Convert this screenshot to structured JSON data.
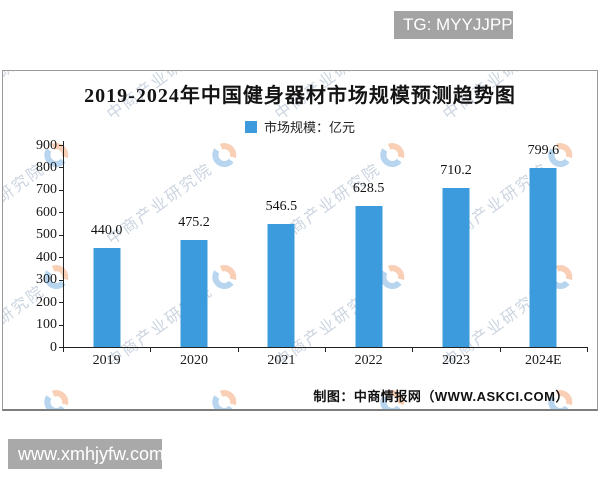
{
  "overlays": {
    "tg_badge": "TG: MYYJJPP",
    "site_badge": "www.xmhjyfw.com"
  },
  "watermark": {
    "text": "中商产业研究院"
  },
  "credit": "制图：中商情报网（WWW.ASKCI.COM）",
  "colors": {
    "bar": "#3C9BDD",
    "axis": "#222222",
    "badge_bg": "#A3A3A3"
  },
  "chart_data": {
    "type": "bar",
    "title": "2019-2024年中国健身器材市场规模预测趋势图",
    "legend_label": "市场规模：亿元",
    "unit": "亿元",
    "categories": [
      "2019",
      "2020",
      "2021",
      "2022",
      "2023",
      "2024E"
    ],
    "values": [
      440.0,
      475.2,
      546.5,
      628.5,
      710.2,
      799.6
    ],
    "value_labels": [
      "440.0",
      "475.2",
      "546.5",
      "628.5",
      "710.2",
      "799.6"
    ],
    "xlabel": "",
    "ylabel": "",
    "ylim": [
      0,
      900
    ],
    "ytick_step": 100,
    "grid": false,
    "legend_position": "top-center",
    "bar_color": "#3C9BDD"
  }
}
